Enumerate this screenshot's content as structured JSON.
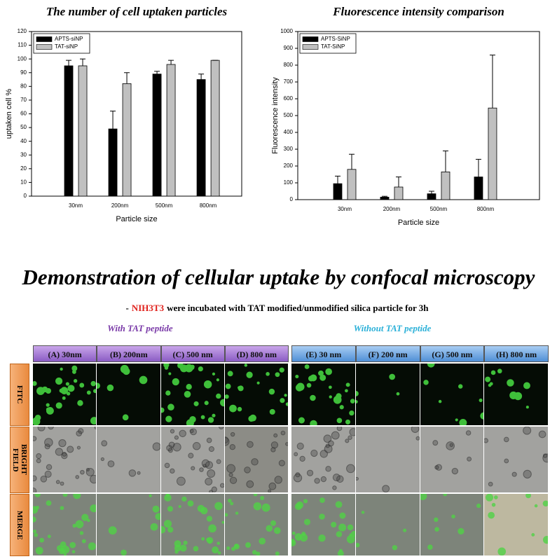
{
  "chart_data": [
    {
      "type": "bar",
      "title": "The number of cell uptaken particles",
      "x_label": "Particle size",
      "y_label": "uptaken cell %",
      "categories": [
        "30nm",
        "200nm",
        "500nm",
        "800nm"
      ],
      "series": [
        {
          "name": "APTS-siNP",
          "color": "#000000",
          "values": [
            95,
            49,
            89,
            85
          ],
          "errors": [
            4,
            13,
            2,
            4
          ]
        },
        {
          "name": "TAT-siNP",
          "color": "#c0c0c0",
          "values": [
            95,
            82,
            96,
            99
          ],
          "errors": [
            5,
            8,
            3,
            0
          ]
        }
      ],
      "ylim": [
        0,
        120
      ],
      "yticks": [
        0,
        10,
        20,
        30,
        40,
        50,
        60,
        70,
        80,
        90,
        100,
        110,
        120
      ],
      "legend": "upper left"
    },
    {
      "type": "bar",
      "title": "Fluorescence intensity comparison",
      "x_label": "Particle size",
      "y_label": "Fluorescence intensity",
      "categories": [
        "30nm",
        "200nm",
        "500nm",
        "800nm"
      ],
      "series": [
        {
          "name": "APTS-SiNP",
          "color": "#000000",
          "values": [
            95,
            15,
            35,
            135
          ],
          "errors": [
            45,
            5,
            15,
            105
          ]
        },
        {
          "name": "TAT-SiNP",
          "color": "#c0c0c0",
          "values": [
            180,
            75,
            165,
            545
          ],
          "errors": [
            90,
            60,
            125,
            315
          ]
        }
      ],
      "ylim": [
        0,
        1000
      ],
      "yticks": [
        0,
        100,
        200,
        300,
        400,
        500,
        600,
        700,
        800,
        900,
        1000
      ],
      "legend": "upper left"
    }
  ],
  "figure": {
    "heading": "Demonstration of cellular uptake by confocal microscopy",
    "note": {
      "prefix": "-",
      "cell_line": "NIH3T3",
      "text": "were incubated with TAT modified/unmodified silica particle for 3h"
    },
    "groups": [
      "With TAT peptide",
      "Without TAT peptide"
    ],
    "columns": [
      "(A) 30nm",
      "(B) 200nm",
      "(C) 500 nm",
      "(D) 800 nm",
      "(E) 30 nm",
      "(F) 200 nm",
      "(G) 500 nm",
      "(H) 800 nm"
    ],
    "rows": [
      "FITC",
      "BRIGHT FIELD",
      "MERGE"
    ]
  }
}
